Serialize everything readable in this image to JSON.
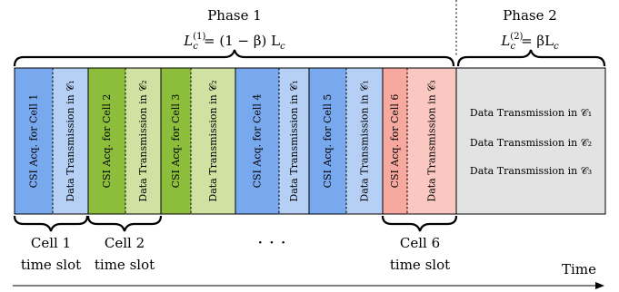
{
  "phase1": {
    "title": "Phase 1",
    "formula_lhs": "L",
    "formula_sub": "c",
    "formula_sup": "(1)",
    "formula_rhs": "= (1 − β) L",
    "formula_rhs_sub": "c"
  },
  "phase2": {
    "title": "Phase 2",
    "formula_lhs": "L",
    "formula_sub": "c",
    "formula_sup": "(2)",
    "formula_rhs": "= βL",
    "formula_rhs_sub": "c"
  },
  "segments": [
    {
      "label": "CSI Acq. for Cell 1",
      "color": "#78a8ee"
    },
    {
      "label": "Data Transmission in 𝒞₁",
      "color": "#b6d0f5"
    },
    {
      "label": "CSI Acq. for Cell 2",
      "color": "#8cbe3c"
    },
    {
      "label": "Data Transmission in 𝒞₂",
      "color": "#cfe2a2"
    },
    {
      "label": "CSI Acq. for Cell 3",
      "color": "#8cbe3c"
    },
    {
      "label": "Data Transmission in 𝒞₂",
      "color": "#cfe2a2"
    },
    {
      "label": "CSI Acq. for Cell 4",
      "color": "#78a8ee"
    },
    {
      "label": "Data Transmission in 𝒞₁",
      "color": "#b6d0f5"
    },
    {
      "label": "CSI Acq. for Cell 5",
      "color": "#78a8ee"
    },
    {
      "label": "Data Transmission in 𝒞₁",
      "color": "#b6d0f5"
    },
    {
      "label": "CSI Acq. for Cell 6",
      "color": "#f7a9a0"
    },
    {
      "label": "Data Transmission in 𝒞₃",
      "color": "#fac8c0"
    }
  ],
  "phase2_block": {
    "color": "#e3e3e3",
    "lines": [
      "Data Transmission in 𝒞₁",
      "Data Transmission in 𝒞₂",
      "Data Transmission in 𝒞₃"
    ]
  },
  "slots": [
    {
      "line1": "Cell 1",
      "line2": "time slot"
    },
    {
      "line1": "Cell 2",
      "line2": "time slot"
    },
    {
      "line1": "Cell 6",
      "line2": "time slot"
    }
  ],
  "ellipsis": "· · ·",
  "time_label": "Time"
}
